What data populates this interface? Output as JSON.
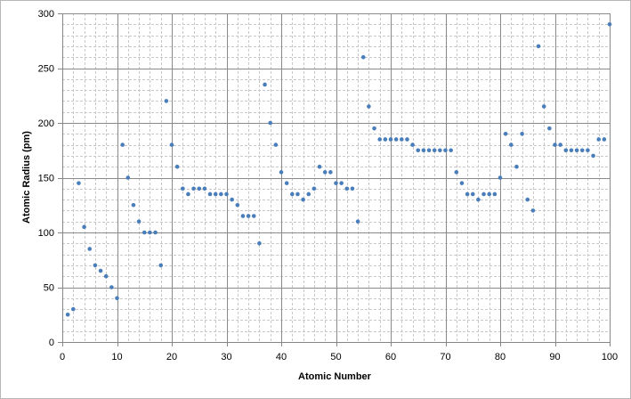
{
  "chart_data": {
    "type": "scatter",
    "title": "",
    "xlabel": "Atomic Number",
    "ylabel": "Atomic Radius  (pm)",
    "xlim": [
      0,
      100
    ],
    "ylim": [
      0,
      300
    ],
    "xticks": [
      0,
      10,
      20,
      30,
      40,
      50,
      60,
      70,
      80,
      90,
      100
    ],
    "yticks": [
      0,
      50,
      100,
      150,
      200,
      250,
      300
    ],
    "minor_grid_x_step": 2,
    "minor_grid_y_step": 10,
    "grid": true,
    "legend": "none",
    "marker_color": "#4a7ebb",
    "x": [
      1,
      2,
      3,
      4,
      5,
      6,
      7,
      8,
      9,
      10,
      11,
      12,
      13,
      14,
      15,
      16,
      17,
      18,
      19,
      20,
      21,
      22,
      23,
      24,
      25,
      26,
      27,
      28,
      29,
      30,
      31,
      32,
      33,
      34,
      35,
      36,
      37,
      38,
      39,
      40,
      41,
      42,
      43,
      44,
      45,
      46,
      47,
      48,
      49,
      50,
      51,
      52,
      53,
      54,
      55,
      56,
      57,
      58,
      59,
      60,
      61,
      62,
      63,
      64,
      65,
      66,
      67,
      68,
      69,
      70,
      71,
      72,
      73,
      74,
      75,
      76,
      77,
      78,
      79,
      80,
      81,
      82,
      83,
      84,
      85,
      86,
      87,
      88,
      89,
      90,
      91,
      92,
      93,
      94,
      95,
      96,
      97,
      98,
      99,
      100
    ],
    "y": [
      25,
      30,
      145,
      105,
      85,
      70,
      65,
      60,
      50,
      40,
      180,
      150,
      125,
      110,
      100,
      100,
      100,
      70,
      220,
      180,
      160,
      140,
      135,
      140,
      140,
      140,
      135,
      135,
      135,
      135,
      130,
      125,
      115,
      115,
      115,
      90,
      235,
      200,
      180,
      155,
      145,
      135,
      135,
      130,
      135,
      140,
      160,
      155,
      155,
      145,
      145,
      140,
      140,
      110,
      260,
      215,
      195,
      185,
      185,
      185,
      185,
      185,
      185,
      180,
      175,
      175,
      175,
      175,
      175,
      175,
      175,
      155,
      145,
      135,
      135,
      130,
      135,
      135,
      135,
      150,
      190,
      180,
      160,
      190,
      130,
      120,
      270,
      215,
      195,
      180,
      180,
      175,
      175,
      175,
      175,
      175,
      170,
      185,
      185,
      290
    ]
  }
}
